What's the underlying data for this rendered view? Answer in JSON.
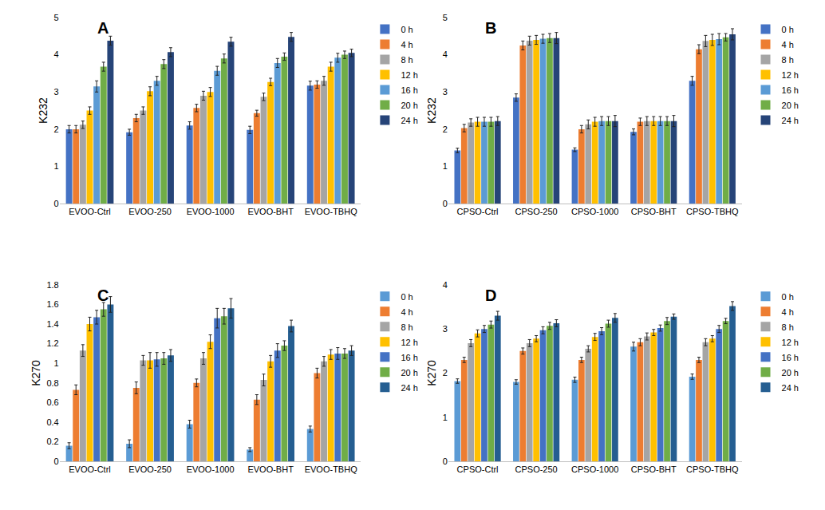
{
  "chart_data": [
    {
      "type": "bar",
      "title": "A",
      "y_label": "K232",
      "grid": false,
      "categories": [
        "EVOO-Ctrl",
        "EVOO-250",
        "EVOO-1000",
        "EVOO-BHT",
        "EVOO-TBHQ"
      ],
      "ylim": [
        0,
        5
      ],
      "yticks": [
        0,
        1,
        2,
        3,
        4,
        5
      ],
      "series": [
        {
          "name": "0 h",
          "color": "#4472c4",
          "values": [
            2.0,
            1.92,
            2.1,
            1.98,
            3.17
          ],
          "errors": [
            0.1,
            0.08,
            0.1,
            0.1,
            0.12
          ]
        },
        {
          "name": "4 h",
          "color": "#ed7d31",
          "values": [
            2.0,
            2.3,
            2.57,
            2.43,
            3.2
          ],
          "errors": [
            0.1,
            0.1,
            0.1,
            0.08,
            0.1
          ]
        },
        {
          "name": "8 h",
          "color": "#a5a5a5",
          "values": [
            2.12,
            2.5,
            2.9,
            2.87,
            3.3
          ],
          "errors": [
            0.1,
            0.1,
            0.12,
            0.1,
            0.12
          ]
        },
        {
          "name": "12 h",
          "color": "#ffc000",
          "values": [
            2.5,
            3.02,
            3.0,
            3.27,
            3.68
          ],
          "errors": [
            0.1,
            0.12,
            0.12,
            0.1,
            0.12
          ]
        },
        {
          "name": "16 h",
          "color": "#5b9bd5",
          "values": [
            3.15,
            3.3,
            3.57,
            3.78,
            3.92
          ],
          "errors": [
            0.15,
            0.12,
            0.12,
            0.12,
            0.12
          ]
        },
        {
          "name": "20 h",
          "color": "#70ad47",
          "values": [
            3.68,
            3.75,
            3.9,
            3.95,
            4.0
          ],
          "errors": [
            0.12,
            0.12,
            0.12,
            0.1,
            0.1
          ]
        },
        {
          "name": "24 h",
          "color": "#264478",
          "values": [
            4.38,
            4.07,
            4.35,
            4.48,
            4.05
          ],
          "errors": [
            0.12,
            0.12,
            0.12,
            0.12,
            0.1
          ]
        }
      ]
    },
    {
      "type": "bar",
      "title": "B",
      "y_label": "K232",
      "grid": false,
      "categories": [
        "CPSO-Ctrl",
        "CPSO-250",
        "CPSO-1000",
        "CPSO-BHT",
        "CPSO-TBHQ"
      ],
      "ylim": [
        0,
        5
      ],
      "yticks": [
        0,
        1,
        2,
        3,
        4,
        5
      ],
      "series": [
        {
          "name": "0 h",
          "color": "#4472c4",
          "values": [
            1.43,
            2.85,
            1.45,
            1.93,
            3.3
          ],
          "errors": [
            0.06,
            0.1,
            0.05,
            0.08,
            0.12
          ]
        },
        {
          "name": "4 h",
          "color": "#ed7d31",
          "values": [
            2.03,
            4.25,
            2.0,
            2.2,
            4.15
          ],
          "errors": [
            0.1,
            0.12,
            0.1,
            0.1,
            0.12
          ]
        },
        {
          "name": "8 h",
          "color": "#a5a5a5",
          "values": [
            2.18,
            4.38,
            2.13,
            2.22,
            4.37
          ],
          "errors": [
            0.1,
            0.12,
            0.12,
            0.12,
            0.15
          ]
        },
        {
          "name": "12 h",
          "color": "#ffc000",
          "values": [
            2.2,
            4.4,
            2.2,
            2.22,
            4.4
          ],
          "errors": [
            0.12,
            0.12,
            0.12,
            0.12,
            0.15
          ]
        },
        {
          "name": "16 h",
          "color": "#5b9bd5",
          "values": [
            2.2,
            4.43,
            2.22,
            2.22,
            4.42
          ],
          "errors": [
            0.12,
            0.12,
            0.12,
            0.12,
            0.15
          ]
        },
        {
          "name": "20 h",
          "color": "#70ad47",
          "values": [
            2.2,
            4.45,
            2.22,
            2.22,
            4.47
          ],
          "errors": [
            0.12,
            0.12,
            0.12,
            0.12,
            0.1
          ]
        },
        {
          "name": "24 h",
          "color": "#264478",
          "values": [
            2.22,
            4.45,
            2.22,
            2.22,
            4.55
          ],
          "errors": [
            0.12,
            0.15,
            0.15,
            0.15,
            0.15
          ]
        }
      ]
    },
    {
      "type": "bar",
      "title": "C",
      "y_label": "K270",
      "grid": false,
      "categories": [
        "EVOO-Ctrl",
        "EVOO-250",
        "EVOO-1000",
        "EVOO-BHT",
        "EVOO-TBHQ"
      ],
      "ylim": [
        0,
        1.8
      ],
      "yticks": [
        0,
        0.2,
        0.4,
        0.6,
        0.8,
        1,
        1.2,
        1.4,
        1.6,
        1.8
      ],
      "series": [
        {
          "name": "0 h",
          "color": "#5b9bd5",
          "values": [
            0.16,
            0.18,
            0.38,
            0.12,
            0.33
          ],
          "errors": [
            0.03,
            0.04,
            0.04,
            0.02,
            0.03
          ]
        },
        {
          "name": "4 h",
          "color": "#ed7d31",
          "values": [
            0.73,
            0.75,
            0.8,
            0.63,
            0.9
          ],
          "errors": [
            0.05,
            0.06,
            0.04,
            0.05,
            0.05
          ]
        },
        {
          "name": "8 h",
          "color": "#a5a5a5",
          "values": [
            1.13,
            1.03,
            1.05,
            0.83,
            1.02
          ],
          "errors": [
            0.06,
            0.05,
            0.06,
            0.06,
            0.05
          ]
        },
        {
          "name": "12 h",
          "color": "#ffc000",
          "values": [
            1.4,
            1.03,
            1.22,
            1.02,
            1.09
          ],
          "errors": [
            0.07,
            0.08,
            0.07,
            0.06,
            0.05
          ]
        },
        {
          "name": "16 h",
          "color": "#4472c4",
          "values": [
            1.47,
            1.04,
            1.46,
            1.13,
            1.1
          ],
          "errors": [
            0.07,
            0.07,
            0.1,
            0.07,
            0.06
          ]
        },
        {
          "name": "20 h",
          "color": "#70ad47",
          "values": [
            1.55,
            1.05,
            1.48,
            1.18,
            1.1
          ],
          "errors": [
            0.07,
            0.06,
            0.08,
            0.05,
            0.05
          ]
        },
        {
          "name": "24 h",
          "color": "#255e91",
          "values": [
            1.6,
            1.08,
            1.56,
            1.38,
            1.13
          ],
          "errors": [
            0.08,
            0.06,
            0.1,
            0.06,
            0.05
          ]
        }
      ]
    },
    {
      "type": "bar",
      "title": "D",
      "y_label": "K270",
      "grid": false,
      "categories": [
        "CPSO-Ctrl",
        "CPSO-250",
        "CPSO-1000",
        "CPSO-BHT",
        "CPSO-TBHQ"
      ],
      "ylim": [
        0,
        4
      ],
      "yticks": [
        0,
        1,
        2,
        3,
        4
      ],
      "series": [
        {
          "name": "0 h",
          "color": "#5b9bd5",
          "values": [
            1.82,
            1.8,
            1.85,
            2.6,
            1.92
          ],
          "errors": [
            0.05,
            0.05,
            0.06,
            0.1,
            0.06
          ]
        },
        {
          "name": "4 h",
          "color": "#ed7d31",
          "values": [
            2.3,
            2.5,
            2.3,
            2.7,
            2.3
          ],
          "errors": [
            0.06,
            0.07,
            0.06,
            0.08,
            0.06
          ]
        },
        {
          "name": "8 h",
          "color": "#a5a5a5",
          "values": [
            2.68,
            2.68,
            2.55,
            2.83,
            2.7
          ],
          "errors": [
            0.08,
            0.08,
            0.07,
            0.08,
            0.08
          ]
        },
        {
          "name": "12 h",
          "color": "#ffc000",
          "values": [
            2.9,
            2.78,
            2.82,
            2.92,
            2.78
          ],
          "errors": [
            0.08,
            0.07,
            0.08,
            0.07,
            0.07
          ]
        },
        {
          "name": "16 h",
          "color": "#4472c4",
          "values": [
            3.0,
            2.97,
            2.95,
            3.02,
            3.0
          ],
          "errors": [
            0.08,
            0.08,
            0.08,
            0.07,
            0.08
          ]
        },
        {
          "name": "20 h",
          "color": "#70ad47",
          "values": [
            3.1,
            3.07,
            3.12,
            3.18,
            3.18
          ],
          "errors": [
            0.08,
            0.08,
            0.08,
            0.08,
            0.06
          ]
        },
        {
          "name": "24 h",
          "color": "#255e91",
          "values": [
            3.3,
            3.13,
            3.25,
            3.28,
            3.52
          ],
          "errors": [
            0.1,
            0.08,
            0.1,
            0.06,
            0.1
          ]
        }
      ]
    }
  ]
}
